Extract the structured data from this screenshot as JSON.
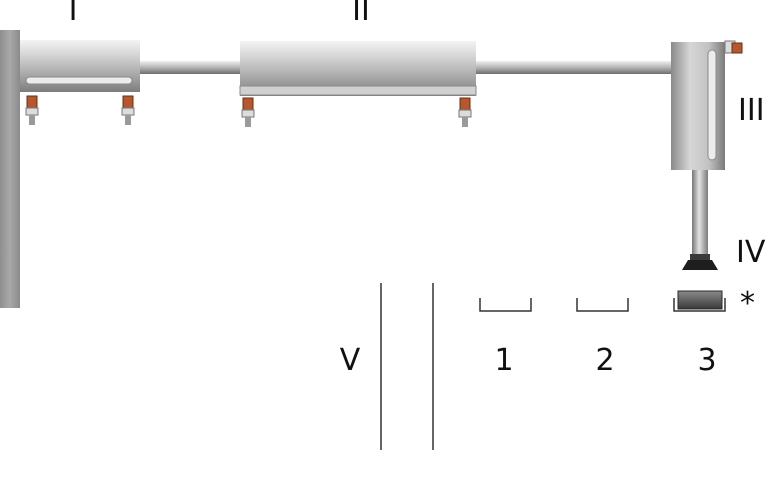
{
  "labels": {
    "cylinder_1": "I",
    "cylinder_2": "II",
    "cylinder_3": "III",
    "gripper": "IV",
    "separator": "V",
    "station_1": "1",
    "station_2": "2",
    "station_3": "3",
    "workpiece": "*"
  },
  "colors": {
    "metal_light": "#e6e6e6",
    "metal_mid": "#b8b8b8",
    "metal_dark": "#7a7a7a",
    "fitting": "#b5582f",
    "wall": "#9a9a9a",
    "gripper": "#1e1e1e",
    "line": "#333333"
  },
  "icons": {
    "fitting": "pneumatic-port-icon",
    "gripper": "suction-cup-icon",
    "workpiece": "workpiece-block-icon"
  }
}
